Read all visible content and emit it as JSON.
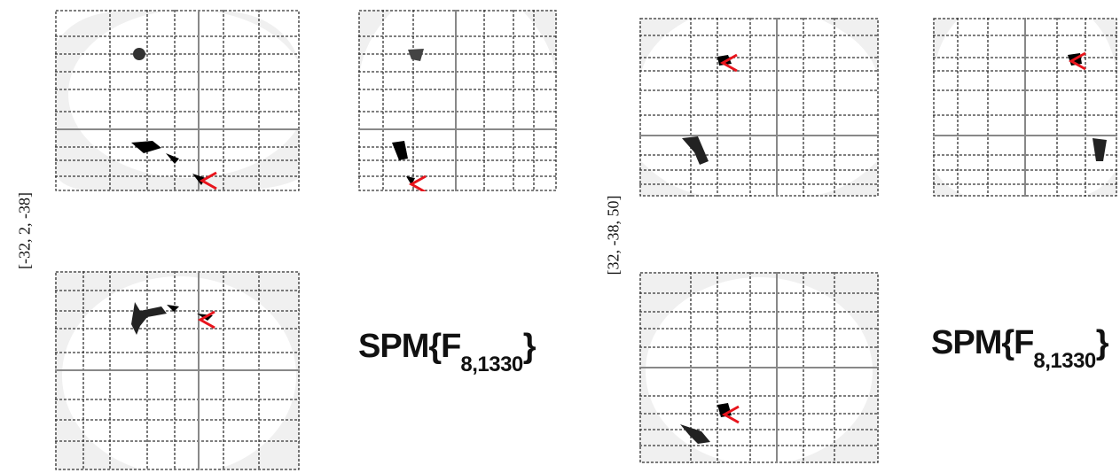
{
  "left_panel": {
    "coordinate_label": "[-32, 2, -38]",
    "statistic": {
      "prefix": "SPM{F",
      "subscript": "8,1330",
      "suffix": "}"
    }
  },
  "right_panel": {
    "coordinate_label": "[32, -38, 50]",
    "statistic": {
      "prefix": "SPM{F",
      "subscript": "8,1330",
      "suffix": "}"
    }
  },
  "colors": {
    "grid": "#333333",
    "crosshair": "#808080",
    "brain": "#eeeeee",
    "marker": "#e8141c",
    "blob": "#000000"
  }
}
